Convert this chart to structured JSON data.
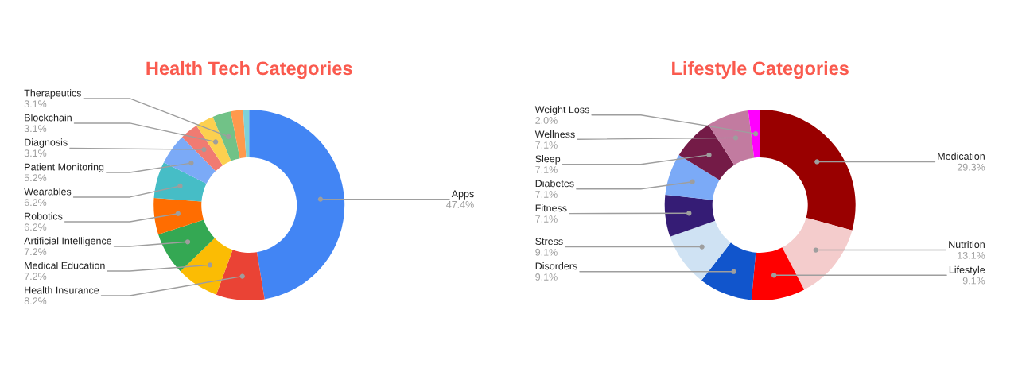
{
  "chart_data": [
    {
      "type": "donut",
      "title": "Health Tech Categories",
      "categories": [
        "Apps",
        "Health Insurance",
        "Medical Education",
        "Artificial Intelligence",
        "Robotics",
        "Wearables",
        "Patient Monitoring",
        "Diagnosis",
        "Blockchain",
        "Therapeutics",
        null,
        null
      ],
      "values": [
        47.4,
        8.2,
        7.2,
        7.2,
        6.2,
        6.2,
        5.2,
        3.1,
        3.1,
        3.1,
        2.1,
        1.0
      ],
      "value_labels": [
        "47.4%",
        "8.2%",
        "7.2%",
        "7.2%",
        "6.2%",
        "6.2%",
        "5.2%",
        "3.1%",
        "3.1%",
        "3.1%",
        null,
        null
      ],
      "colors": [
        "#4285f4",
        "#ea4335",
        "#fbbc04",
        "#34a853",
        "#ff6d01",
        "#46bdc6",
        "#7baaf7",
        "#f07b72",
        "#fcd04f",
        "#71c287",
        "#ff994d",
        "#7ed1d7"
      ]
    },
    {
      "type": "donut",
      "title": "Lifestyle Categories",
      "categories": [
        "Medication",
        "Nutrition",
        "Lifestyle",
        "Disorders",
        "Stress",
        "Fitness",
        "Diabetes",
        "Sleep",
        "Wellness",
        "Weight Loss"
      ],
      "values": [
        29.3,
        13.1,
        9.1,
        9.1,
        9.1,
        7.1,
        7.1,
        7.1,
        7.1,
        2.0
      ],
      "value_labels": [
        "29.3%",
        "13.1%",
        "9.1%",
        "9.1%",
        "9.1%",
        "7.1%",
        "7.1%",
        "7.1%",
        "7.1%",
        "2.0%"
      ],
      "colors": [
        "#990000",
        "#f4cccc",
        "#ff0000",
        "#1155cc",
        "#cfe2f3",
        "#351c75",
        "#7baaf7",
        "#741b47",
        "#c27ba0",
        "#ff00ff"
      ]
    }
  ]
}
